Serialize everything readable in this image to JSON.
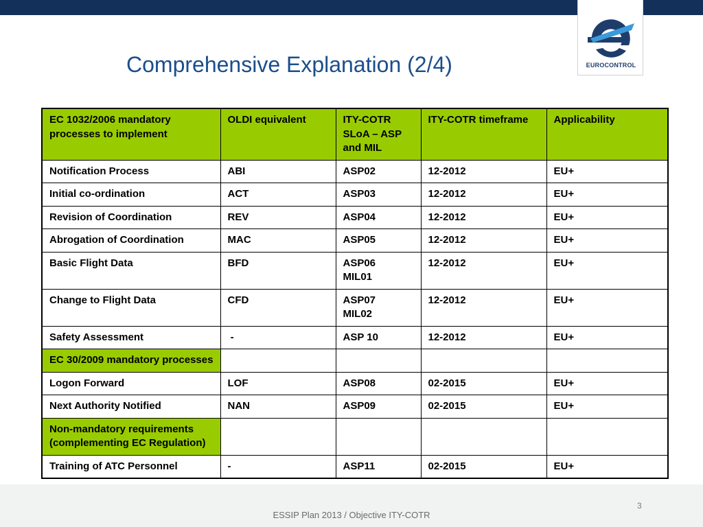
{
  "slide": {
    "title": "Comprehensive Explanation (2/4)",
    "logo_text": "EUROCONTROL",
    "page_number": "3",
    "footer": "ESSIP Plan 2013 / Objective ITY-COTR"
  },
  "colors": {
    "header_bar": "#12305a",
    "highlight_green": "#99cc00",
    "title_blue": "#1b4e8c"
  },
  "table": {
    "headers": [
      "EC 1032/2006 mandatory processes to implement",
      "OLDI equivalent",
      "ITY-COTR SLoA – ASP and MIL",
      "ITY-COTR timeframe",
      "Applicability"
    ],
    "rows": [
      [
        "Notification Process",
        "ABI",
        "ASP02",
        "12-2012",
        "EU+"
      ],
      [
        "Initial co-ordination",
        "ACT",
        "ASP03",
        "12-2012",
        "EU+"
      ],
      [
        "Revision of Coordination",
        "REV",
        "ASP04",
        "12-2012",
        "EU+"
      ],
      [
        "Abrogation of Coordination",
        "MAC",
        "ASP05",
        "12-2012",
        "EU+"
      ],
      [
        "Basic Flight Data",
        "BFD",
        "ASP06",
        "12-2012",
        "EU+"
      ],
      [
        "Change to Flight Data",
        "CFD",
        "ASP07",
        "12-2012",
        "EU+"
      ],
      [
        "Safety Assessment",
        " -",
        "ASP 10",
        "12-2012",
        "EU+"
      ],
      [
        "EC 30/2009 mandatory processes",
        "",
        "",
        "",
        ""
      ],
      [
        "Logon Forward",
        "LOF",
        "ASP08",
        "02-2015",
        "EU+"
      ],
      [
        "Next Authority Notified",
        "NAN",
        "ASP09",
        "02-2015",
        "EU+"
      ],
      [
        "Non-mandatory requirements (complementing EC Regulation)",
        "",
        "",
        "",
        ""
      ],
      [
        "Training of ATC Personnel",
        "-",
        "ASP11",
        "02-2015",
        "EU+"
      ]
    ],
    "extra": {
      "basic_flight_data_mil": "MIL01",
      "change_flight_data_mil": "MIL02"
    }
  }
}
